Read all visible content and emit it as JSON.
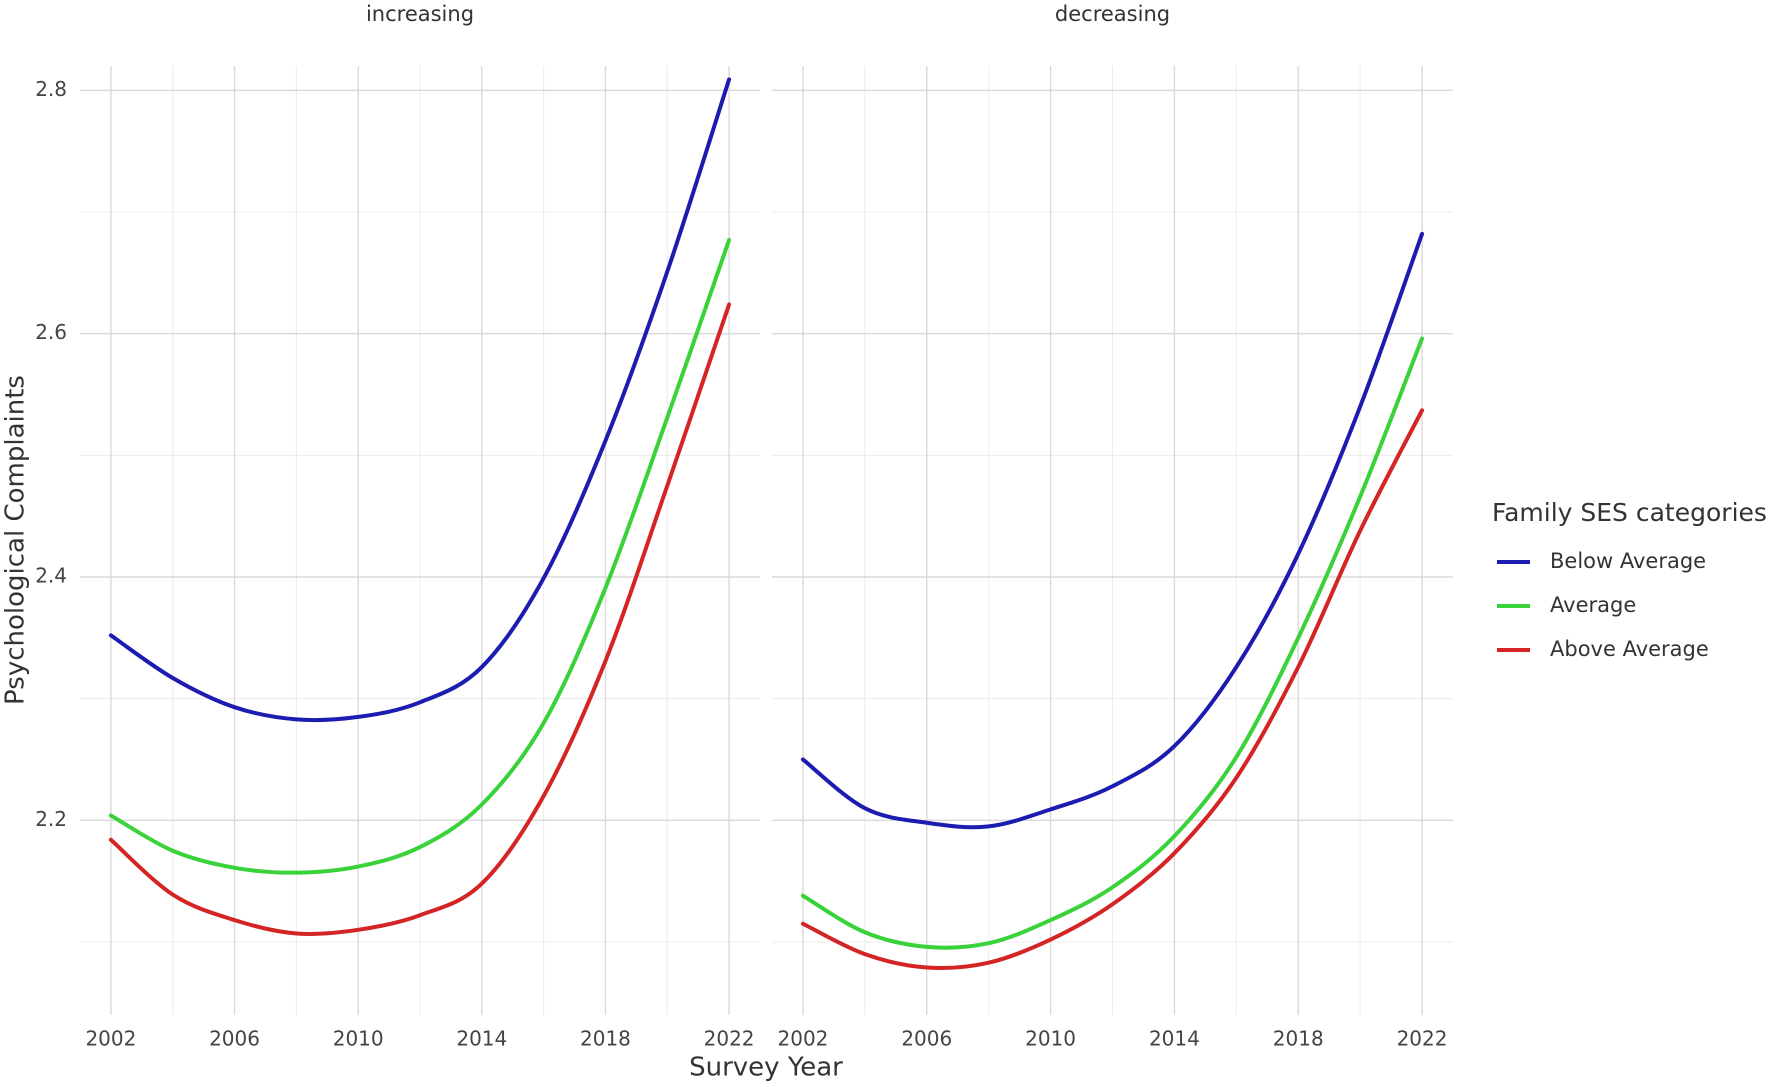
{
  "chart_data": [
    {
      "type": "line",
      "title": "increasing",
      "x_label": "Survey Year",
      "y_label": "Psychological Complaints",
      "legend_title": "Family SES categories",
      "x": [
        2002,
        2004,
        2006,
        2008,
        2010,
        2012,
        2014,
        2016,
        2018,
        2020,
        2022
      ],
      "series": [
        {
          "name": "Below Average",
          "color": "#1c1cb0",
          "values": [
            2.352,
            2.317,
            2.293,
            2.283,
            2.285,
            2.297,
            2.326,
            2.399,
            2.512,
            2.651,
            2.809
          ]
        },
        {
          "name": "Average",
          "color": "#3ad23a",
          "values": [
            2.204,
            2.175,
            2.161,
            2.157,
            2.162,
            2.178,
            2.213,
            2.28,
            2.391,
            2.531,
            2.677
          ]
        },
        {
          "name": "Above Average",
          "color": "#d42424",
          "values": [
            2.184,
            2.139,
            2.118,
            2.107,
            2.11,
            2.122,
            2.148,
            2.22,
            2.331,
            2.475,
            2.624
          ]
        }
      ],
      "xlim": [
        2001,
        2023
      ],
      "ylim": [
        2.04,
        2.82
      ],
      "xticks": [
        2002,
        2006,
        2010,
        2014,
        2018,
        2022
      ],
      "minor_xticks": [
        2004,
        2008,
        2012,
        2016,
        2020
      ],
      "yticks": [
        2.2,
        2.4,
        2.6,
        2.8
      ],
      "minor_yticks": [
        2.1,
        2.3,
        2.5,
        2.7
      ],
      "grid": true
    },
    {
      "type": "line",
      "title": "decreasing",
      "x": [
        2002,
        2004,
        2006,
        2008,
        2010,
        2012,
        2014,
        2016,
        2018,
        2020,
        2022
      ],
      "series": [
        {
          "name": "Below Average",
          "color": "#1c1cb0",
          "values": [
            2.25,
            2.21,
            2.198,
            2.195,
            2.209,
            2.228,
            2.261,
            2.326,
            2.419,
            2.54,
            2.682
          ]
        },
        {
          "name": "Average",
          "color": "#3ad23a",
          "values": [
            2.138,
            2.108,
            2.096,
            2.099,
            2.118,
            2.145,
            2.187,
            2.252,
            2.35,
            2.466,
            2.596
          ]
        },
        {
          "name": "Above Average",
          "color": "#d42424",
          "values": [
            2.115,
            2.09,
            2.079,
            2.083,
            2.102,
            2.131,
            2.173,
            2.235,
            2.326,
            2.438,
            2.537
          ]
        }
      ],
      "xlim": [
        2001,
        2023
      ],
      "ylim": [
        2.04,
        2.82
      ],
      "xticks": [
        2002,
        2006,
        2010,
        2014,
        2018,
        2022
      ],
      "minor_xticks": [
        2004,
        2008,
        2012,
        2016,
        2020
      ],
      "minor_yticks": [
        2.1,
        2.3,
        2.5,
        2.7
      ],
      "grid": true,
      "y_tick_positions": [
        2.2,
        2.4,
        2.6,
        2.8
      ]
    }
  ]
}
